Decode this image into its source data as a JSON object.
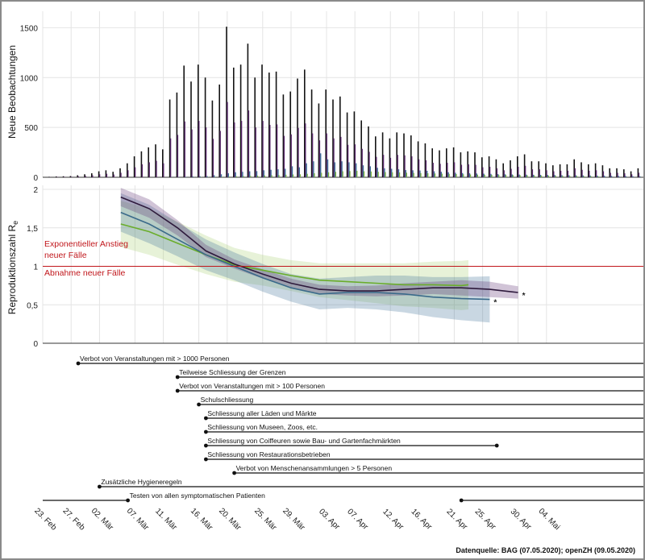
{
  "chart_data": [
    {
      "type": "bar",
      "ylabel": "Neue Beobachtungen",
      "ylim": [
        0,
        1600
      ],
      "yticks": [
        "0",
        "500",
        "1000",
        "1500"
      ],
      "x_start": "2020-02-24",
      "series": [
        {
          "name": "dark",
          "color": "#141414",
          "values": [
            5,
            8,
            10,
            12,
            20,
            30,
            40,
            60,
            70,
            55,
            90,
            140,
            210,
            260,
            300,
            330,
            280,
            780,
            850,
            1120,
            960,
            1130,
            1000,
            770,
            930,
            1510,
            1100,
            1130,
            1340,
            1000,
            1130,
            1050,
            1060,
            830,
            860,
            990,
            1080,
            880,
            740,
            880,
            780,
            810,
            650,
            660,
            570,
            510,
            410,
            450,
            390,
            450,
            440,
            420,
            360,
            340,
            290,
            270,
            290,
            300,
            250,
            260,
            250,
            200,
            210,
            180,
            140,
            170,
            210,
            230,
            160,
            160,
            140,
            120,
            130,
            130,
            180,
            150,
            130,
            140,
            120,
            90,
            90,
            80,
            60,
            90,
            80,
            60,
            90,
            90,
            70,
            40
          ]
        },
        {
          "name": "purple",
          "color": "#5b2a6e",
          "values": [
            2,
            4,
            5,
            6,
            10,
            15,
            20,
            30,
            35,
            28,
            45,
            70,
            100,
            130,
            150,
            165,
            140,
            390,
            425,
            560,
            480,
            565,
            500,
            385,
            465,
            755,
            550,
            565,
            670,
            500,
            565,
            525,
            530,
            415,
            430,
            495,
            540,
            440,
            370,
            440,
            390,
            405,
            325,
            330,
            285,
            255,
            205,
            225,
            195,
            225,
            220,
            210,
            180,
            170,
            145,
            135,
            145,
            150,
            125,
            130,
            125,
            100,
            105,
            90,
            70,
            85,
            105,
            115,
            80,
            80,
            70,
            60,
            65,
            65,
            90,
            75,
            65,
            70,
            60,
            45,
            45,
            40,
            30,
            45,
            40,
            30,
            45,
            45,
            35,
            20
          ]
        },
        {
          "name": "blue",
          "color": "#3c6e97",
          "values": [
            0,
            0,
            0,
            1,
            2,
            3,
            5,
            8,
            10,
            12,
            20,
            30,
            40,
            50,
            55,
            60,
            62,
            70,
            75,
            80,
            85,
            110,
            100,
            140,
            160,
            240,
            180,
            150,
            160,
            150,
            140,
            120,
            110,
            95,
            90,
            85,
            80,
            72,
            70,
            68,
            65,
            60,
            55,
            50,
            45,
            42,
            40,
            38,
            36,
            34,
            32,
            30,
            28,
            27,
            26,
            25,
            24,
            23,
            22,
            21,
            20,
            19,
            18,
            17,
            16,
            15,
            14,
            13,
            12,
            11,
            10,
            9,
            8,
            7
          ]
        },
        {
          "name": "green",
          "color": "#7fb23a",
          "values": [
            0,
            0,
            0,
            0,
            1,
            1,
            2,
            2,
            3,
            3,
            5,
            7,
            10,
            12,
            14,
            16,
            18,
            20,
            22,
            25,
            28,
            30,
            35,
            40,
            45,
            50,
            55,
            60,
            62,
            65,
            60,
            58,
            55,
            52,
            50,
            48,
            46,
            44,
            42,
            40,
            38,
            36,
            34,
            32,
            30,
            28,
            26,
            25,
            24,
            23,
            22,
            21,
            20,
            19,
            18,
            17,
            16,
            15,
            14,
            13,
            12,
            11,
            10,
            9
          ]
        }
      ]
    },
    {
      "type": "line",
      "ylabel": "Reproduktionszahl R",
      "ylabel_sub": "e",
      "ylim": [
        0,
        2
      ],
      "yticks": [
        "0",
        "0,5",
        "1",
        "1,5",
        "2"
      ],
      "threshold": 1,
      "annotations": [
        "Exponentieller Anstieg",
        "neuer Fälle",
        "Abnahme neuer Fälle"
      ],
      "series": [
        {
          "name": "dark",
          "color": "#2e1a3c",
          "band": "#5b2a6e",
          "endmark": "*",
          "points": [
            [
              0,
              1.9
            ],
            [
              4,
              1.75
            ],
            [
              8,
              1.5
            ],
            [
              12,
              1.2
            ],
            [
              16,
              1.03
            ],
            [
              20,
              0.9
            ],
            [
              24,
              0.78
            ],
            [
              28,
              0.7
            ],
            [
              32,
              0.68
            ],
            [
              36,
              0.68
            ],
            [
              40,
              0.7
            ],
            [
              44,
              0.72
            ],
            [
              48,
              0.72
            ],
            [
              52,
              0.7
            ],
            [
              56,
              0.66
            ]
          ],
          "band_w": [
            0.12,
            0.12,
            0.1,
            0.08,
            0.06,
            0.06,
            0.06,
            0.06,
            0.06,
            0.07,
            0.08,
            0.08,
            0.1,
            0.1,
            0.08
          ]
        },
        {
          "name": "blue",
          "color": "#3a6a8a",
          "band": "#3c6e97",
          "endmark": "*",
          "points": [
            [
              0,
              1.7
            ],
            [
              4,
              1.55
            ],
            [
              8,
              1.35
            ],
            [
              12,
              1.15
            ],
            [
              16,
              1.0
            ],
            [
              20,
              0.85
            ],
            [
              24,
              0.72
            ],
            [
              28,
              0.64
            ],
            [
              32,
              0.66
            ],
            [
              36,
              0.66
            ],
            [
              40,
              0.64
            ],
            [
              44,
              0.6
            ],
            [
              48,
              0.58
            ],
            [
              52,
              0.57
            ]
          ],
          "band_w": [
            0.25,
            0.25,
            0.22,
            0.2,
            0.18,
            0.18,
            0.18,
            0.2,
            0.2,
            0.22,
            0.24,
            0.26,
            0.28,
            0.3
          ]
        },
        {
          "name": "green",
          "color": "#6aad2b",
          "band": "#a8cf73",
          "points": [
            [
              0,
              1.55
            ],
            [
              4,
              1.45
            ],
            [
              8,
              1.3
            ],
            [
              12,
              1.15
            ],
            [
              16,
              1.02
            ],
            [
              20,
              0.95
            ],
            [
              24,
              0.88
            ],
            [
              28,
              0.82
            ],
            [
              32,
              0.8
            ],
            [
              36,
              0.78
            ],
            [
              40,
              0.76
            ],
            [
              44,
              0.76
            ],
            [
              48,
              0.75
            ],
            [
              49,
              0.76
            ]
          ],
          "band_w": [
            0.3,
            0.3,
            0.28,
            0.25,
            0.22,
            0.2,
            0.2,
            0.22,
            0.24,
            0.26,
            0.28,
            0.3,
            0.32,
            0.32
          ]
        }
      ]
    }
  ],
  "measures": [
    {
      "label": "Verbot von Veranstaltungen mit > 1000 Personen",
      "start": "2020-02-28"
    },
    {
      "label": "Teilweise Schliessung der Grenzen",
      "start": "2020-03-13"
    },
    {
      "label": "Verbot von Veranstaltungen mit > 100 Personen",
      "start": "2020-03-13"
    },
    {
      "label": "Schulschliessung",
      "start": "2020-03-16"
    },
    {
      "label": "Schliessung aller Läden und Märkte",
      "start": "2020-03-17"
    },
    {
      "label": "Schliessung von Museen, Zoos, etc.",
      "start": "2020-03-17"
    },
    {
      "label": "Schliessung von Coiffeuren sowie Bau- und Gartenfachmärkten",
      "start": "2020-03-17",
      "end": "2020-04-27"
    },
    {
      "label": "Schliessung von Restaurationsbetrieben",
      "start": "2020-03-17"
    },
    {
      "label": "Verbot von Menschenansammlungen > 5 Personen",
      "start": "2020-03-21"
    },
    {
      "label": "Zusätzliche Hygieneregeln",
      "start": "2020-03-02"
    },
    {
      "label": "Testen von allen symptomatischen Patienten",
      "start": "2020-03-06",
      "line_from": "2020-02-23",
      "restart": "2020-04-22"
    }
  ],
  "xaxis": {
    "dates": [
      "2020-02-23",
      "2020-02-27",
      "2020-03-02",
      "2020-03-07",
      "2020-03-11",
      "2020-03-16",
      "2020-03-20",
      "2020-03-25",
      "2020-03-29",
      "2020-04-03",
      "2020-04-07",
      "2020-04-12",
      "2020-04-16",
      "2020-04-21",
      "2020-04-25",
      "2020-04-30",
      "2020-05-04"
    ],
    "labels": [
      "23. Feb",
      "27. Feb",
      "02. Mär",
      "07. Mär",
      "11. Mär",
      "16. Mär",
      "20. Mär",
      "25. Mär",
      "29. Mär",
      "03. Apr",
      "07. Apr",
      "12. Apr",
      "16. Apr",
      "21. Apr",
      "25. Apr",
      "30. Apr",
      "04. Mai"
    ]
  },
  "source": "Datenquelle: BAG (07.05.2020); openZH (09.05.2020)"
}
